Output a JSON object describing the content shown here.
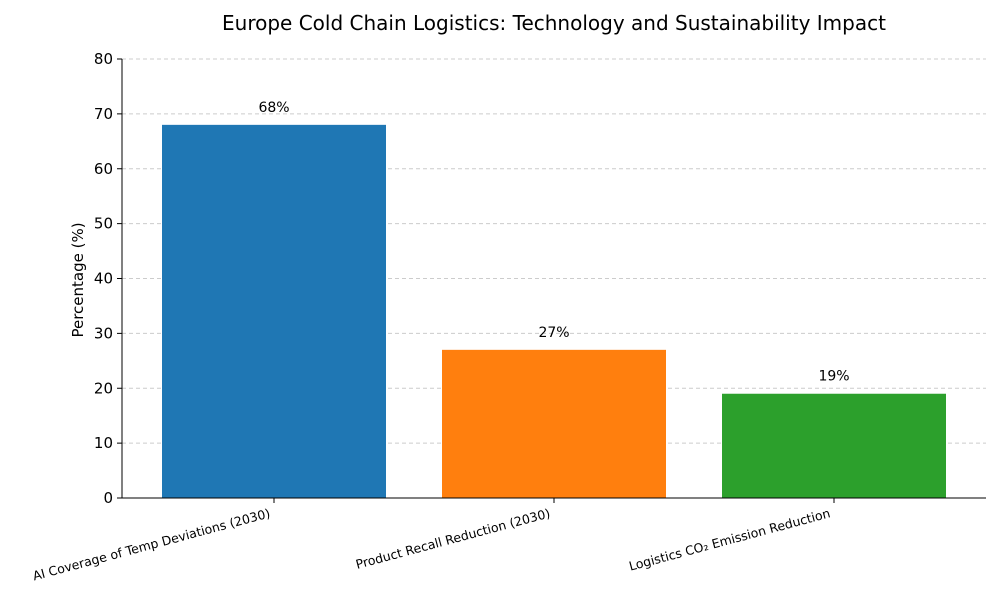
{
  "chart_data": {
    "type": "bar",
    "title": "Europe Cold Chain Logistics: Technology and Sustainability Impact",
    "xlabel": "",
    "ylabel": "Percentage (%)",
    "ylim": [
      0,
      80
    ],
    "yticks": [
      0,
      10,
      20,
      30,
      40,
      50,
      60,
      70,
      80
    ],
    "grid": "y",
    "categories": [
      "AI Coverage of Temp Deviations (2030)",
      "Product Recall Reduction (2030)",
      "Logistics CO₂ Emission Reduction"
    ],
    "values": [
      68,
      27,
      19
    ],
    "data_labels": [
      "68%",
      "27%",
      "19%"
    ],
    "colors": [
      "#1f77b4",
      "#ff7f0e",
      "#2ca02c"
    ]
  }
}
